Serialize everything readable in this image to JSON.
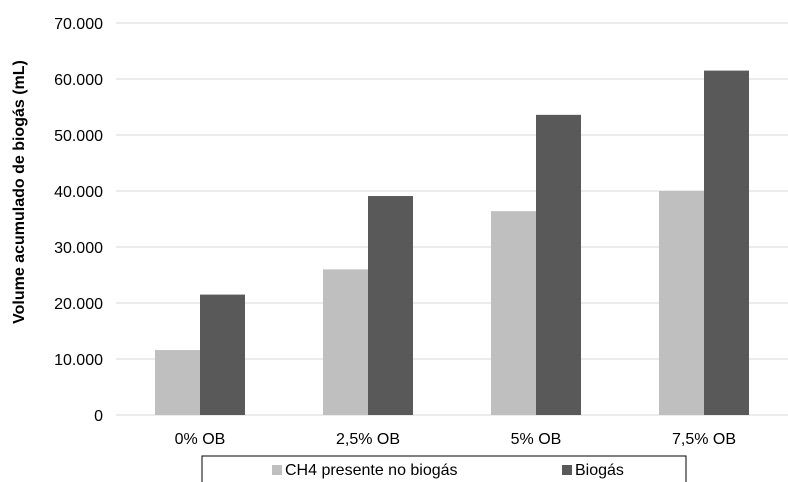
{
  "chart_data": {
    "type": "bar",
    "title": "",
    "xlabel": "",
    "ylabel": "Volume acumulado de biogás (mL)",
    "categories": [
      "0% OB",
      "2,5% OB",
      "5% OB",
      "7,5% OB"
    ],
    "series": [
      {
        "name": "CH4 presente no biogás",
        "color": "#bfbfbf",
        "values": [
          11600,
          26000,
          36400,
          40000
        ]
      },
      {
        "name": "Biogás",
        "color": "#595959",
        "values": [
          21500,
          39100,
          53600,
          61500
        ]
      }
    ],
    "ylim": [
      0,
      70000
    ],
    "yticks": [
      0,
      10000,
      20000,
      30000,
      40000,
      50000,
      60000,
      70000
    ],
    "ytick_labels": [
      "0",
      "10.000",
      "20.000",
      "30.000",
      "40.000",
      "50.000",
      "60.000",
      "70.000"
    ],
    "grid": true,
    "gridline_color": "#d9d9d9",
    "legend_position": "bottom"
  }
}
